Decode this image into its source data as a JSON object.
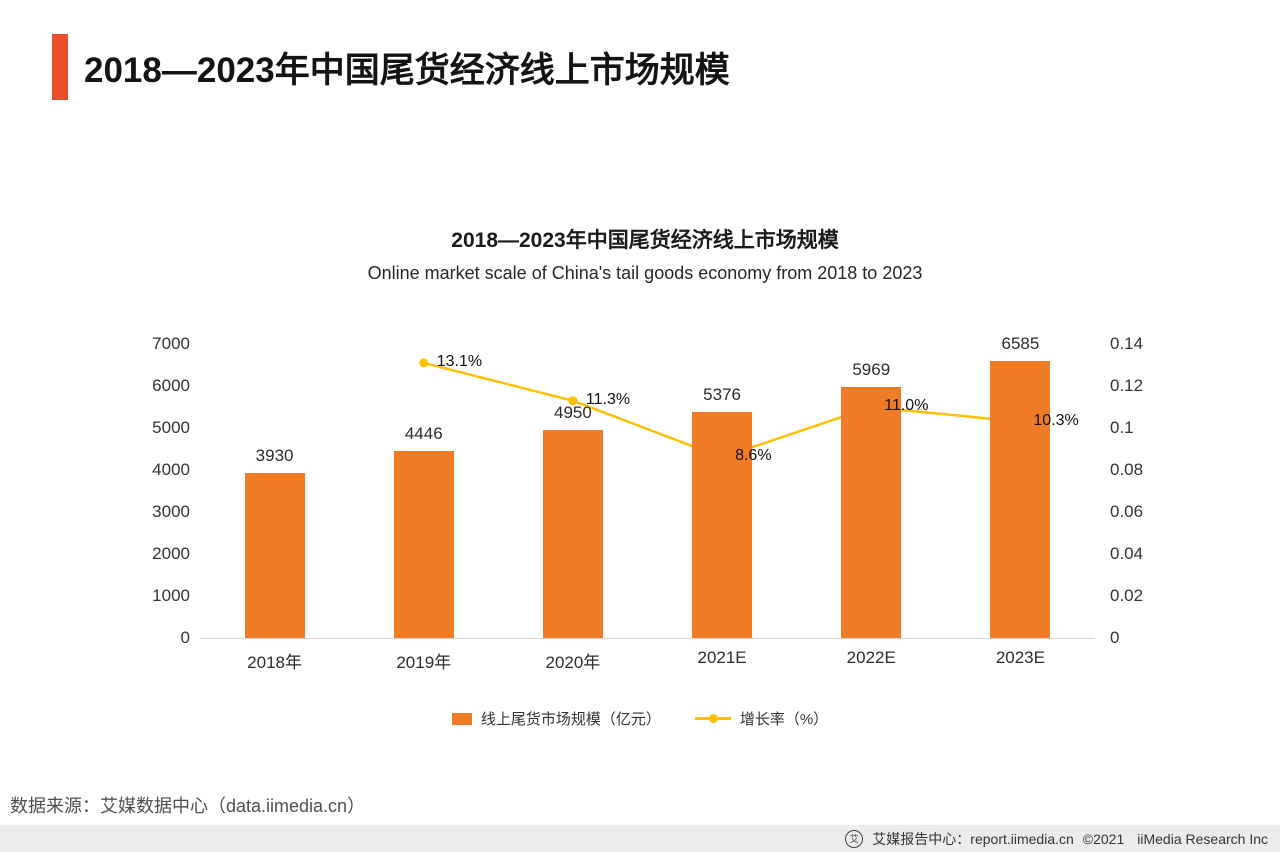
{
  "page": {
    "header_title": "2018—2023年中国尾货经济线上市场规模",
    "accent_color": "#E8502B",
    "source_note": "数据来源：艾媒数据中心（data.iimedia.cn）",
    "footer": {
      "report_center": "艾媒报告中心：report.iimedia.cn",
      "copyright": "©2021",
      "company": "iiMedia Research Inc"
    }
  },
  "chart_data": {
    "type": "bar",
    "title": "2018—2023年中国尾货经济线上市场规模",
    "subtitle": "Online market scale of China's tail goods economy from 2018 to 2023",
    "categories": [
      "2018年",
      "2019年",
      "2020年",
      "2021E",
      "2022E",
      "2023E"
    ],
    "series": [
      {
        "name": "线上尾货市场规模（亿元）",
        "type": "bar",
        "color": "#F07C28",
        "values": [
          3930,
          4446,
          4950,
          5376,
          5969,
          6585
        ]
      },
      {
        "name": "增长率（%）",
        "type": "line",
        "color": "#FFC000",
        "values": [
          null,
          0.131,
          0.113,
          0.086,
          0.11,
          0.103
        ],
        "point_labels": [
          "",
          "13.1%",
          "11.3%",
          "8.6%",
          "11.0%",
          "10.3%"
        ]
      }
    ],
    "left_axis": {
      "min": 0,
      "max": 7000,
      "ticks": [
        0,
        1000,
        2000,
        3000,
        4000,
        5000,
        6000,
        7000
      ]
    },
    "right_axis": {
      "min": 0,
      "max": 0.14,
      "ticks": [
        0,
        0.02,
        0.04,
        0.06,
        0.08,
        0.1,
        0.12,
        0.14
      ],
      "tick_labels": [
        "0",
        "0.02",
        "0.04",
        "0.06",
        "0.08",
        "0.1",
        "0.12",
        "0.14"
      ]
    },
    "legend_position": "bottom",
    "grid": false
  }
}
